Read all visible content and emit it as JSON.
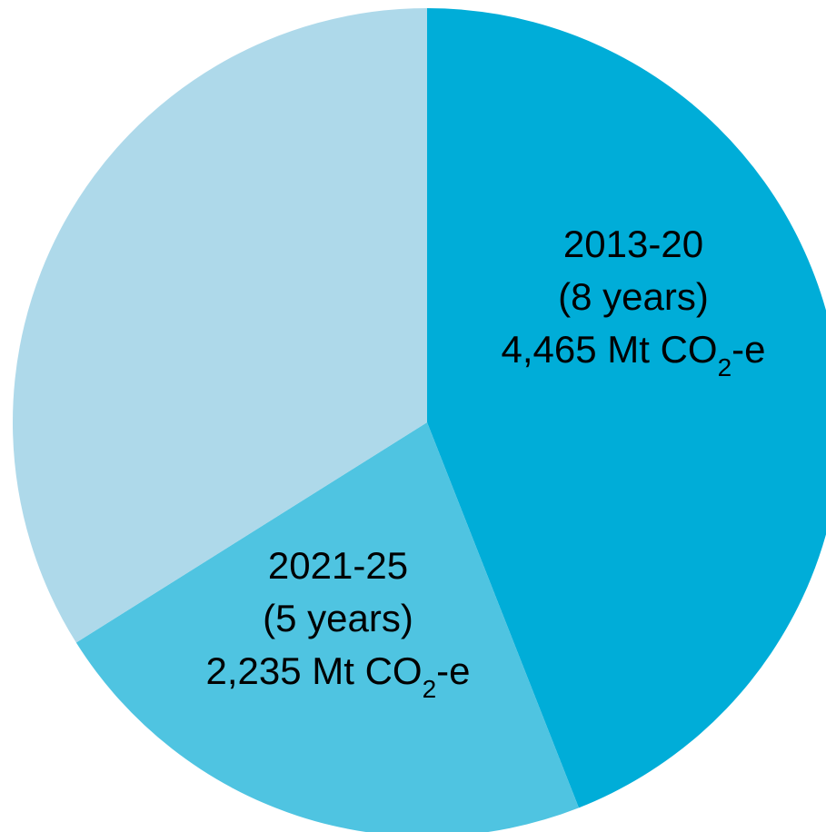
{
  "chart_data": {
    "type": "pie",
    "unit": "Mt CO2-e",
    "start_angle_degrees": 0,
    "direction": "clockwise",
    "slices": [
      {
        "period": "2013-20",
        "duration": "(8 years)",
        "value": 4465,
        "value_text": "4,465 Mt CO",
        "unit_subscript": "2",
        "unit_suffix": "-e",
        "color": "#00ADD8"
      },
      {
        "period": "2021-25",
        "duration": "(5 years)",
        "value": 2235,
        "value_text": "2,235 Mt CO",
        "unit_subscript": "2",
        "unit_suffix": "-e",
        "color": "#4FC4E1"
      },
      {
        "value": 3440,
        "color": "#AED9EA"
      }
    ]
  }
}
